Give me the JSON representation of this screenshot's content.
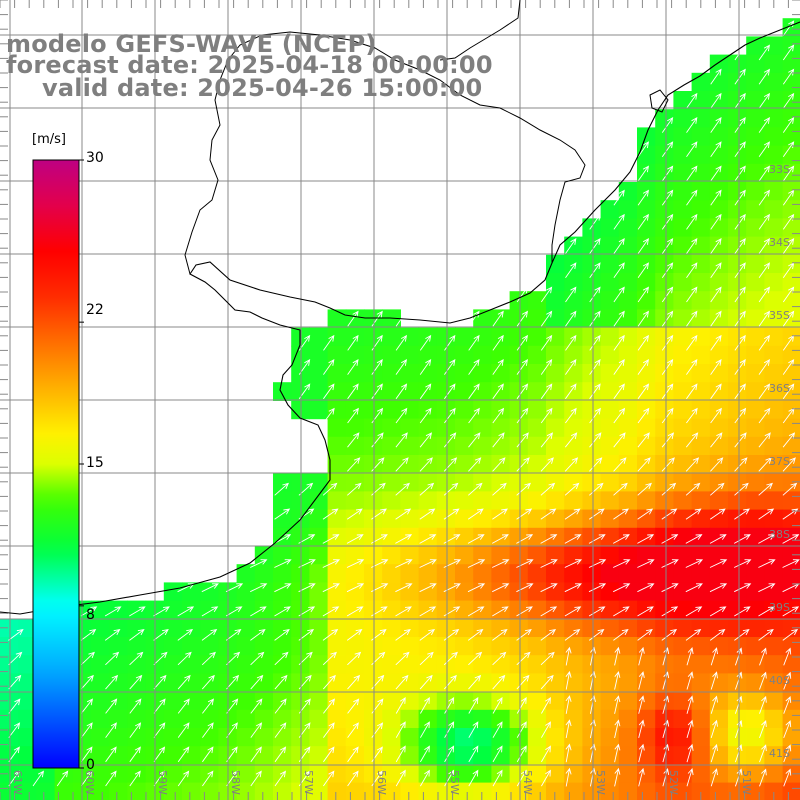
{
  "title": {
    "model": "modelo GEFS-WAVE (NCEP)",
    "forecast": "forecast date: 2025-04-18 00:00:00",
    "valid": "valid date: 2025-04-26 15:00:00"
  },
  "colorbar": {
    "unit": "[m/s]",
    "min": 0,
    "max": 30,
    "ticks": [
      "30",
      "22",
      "15",
      "8",
      "0"
    ],
    "colors": [
      "#0000ff",
      "#00a0ff",
      "#00ffff",
      "#00ff40",
      "#40ff00",
      "#c0ff00",
      "#ffff00",
      "#ffc000",
      "#ff8000",
      "#ff3000",
      "#ff0000",
      "#e00050",
      "#c00080"
    ]
  },
  "map": {
    "variable": "wind speed and direction",
    "lat_labels": [
      "33S",
      "34S",
      "35S",
      "36S",
      "37S",
      "38S",
      "39S",
      "40S",
      "41S"
    ],
    "lon_labels": [
      "61W",
      "60W",
      "59W",
      "58W",
      "57W",
      "56W",
      "55W",
      "54W",
      "53W",
      "52W",
      "51W"
    ],
    "lon_range": [
      -61.3,
      -50.4
    ],
    "lat_range": [
      -41.2,
      -30.7
    ],
    "land_color": "#ffffff",
    "grid_color": "#808080",
    "coast_color": "#000000",
    "arrow_color": "#ffffff"
  }
}
